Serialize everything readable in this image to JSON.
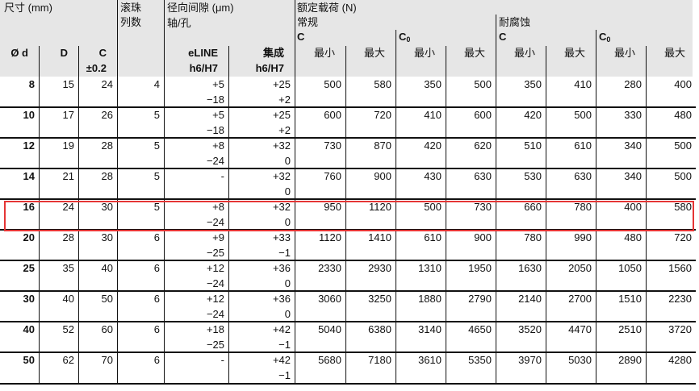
{
  "header": {
    "dimensions": "尺寸 (mm)",
    "ball_rows_1": "滚珠",
    "ball_rows_2": "列数",
    "radial_clearance": "径向间隙 (μm)",
    "shaft_bore": "轴/孔",
    "load_rating": "额定载荷 (N)",
    "standard": "常规",
    "corrosion_resistant": "耐腐蚀",
    "c_dynamic": "C",
    "c_static": "C",
    "c_static_sub": "0",
    "col_d": "Ø d",
    "col_D": "D",
    "col_C": "C",
    "col_C_tol": "±0.2",
    "eline": "eLINE",
    "eline_fit": "h6/H7",
    "integrated": "集成",
    "integrated_fit": "h6/H7",
    "min": "最小",
    "max": "最大"
  },
  "rows": [
    {
      "d": "8",
      "D": "15",
      "C": "24",
      "n": "4",
      "e1": "+5",
      "e2": "−18",
      "i1": "+25",
      "i2": "+2",
      "v": [
        "500",
        "580",
        "350",
        "500",
        "350",
        "410",
        "280",
        "400"
      ]
    },
    {
      "d": "10",
      "D": "17",
      "C": "26",
      "n": "5",
      "e1": "+5",
      "e2": "−18",
      "i1": "+25",
      "i2": "+2",
      "v": [
        "600",
        "720",
        "410",
        "600",
        "420",
        "500",
        "330",
        "480"
      ]
    },
    {
      "d": "12",
      "D": "19",
      "C": "28",
      "n": "5",
      "e1": "+8",
      "e2": "−24",
      "i1": "+32",
      "i2": "0",
      "v": [
        "730",
        "870",
        "420",
        "620",
        "510",
        "610",
        "340",
        "500"
      ]
    },
    {
      "d": "14",
      "D": "21",
      "C": "28",
      "n": "5",
      "e1": "-",
      "e2": "",
      "i1": "+32",
      "i2": "0",
      "v": [
        "760",
        "900",
        "430",
        "630",
        "530",
        "630",
        "340",
        "500"
      ]
    },
    {
      "d": "16",
      "D": "24",
      "C": "30",
      "n": "5",
      "e1": "+8",
      "e2": "−24",
      "i1": "+32",
      "i2": "0",
      "v": [
        "950",
        "1120",
        "500",
        "730",
        "660",
        "780",
        "400",
        "580"
      ],
      "highlighted": true
    },
    {
      "d": "20",
      "D": "28",
      "C": "30",
      "n": "6",
      "e1": "+9",
      "e2": "−25",
      "i1": "+33",
      "i2": "−1",
      "v": [
        "1120",
        "1410",
        "610",
        "900",
        "780",
        "990",
        "480",
        "720"
      ]
    },
    {
      "d": "25",
      "D": "35",
      "C": "40",
      "n": "6",
      "e1": "+12",
      "e2": "−24",
      "i1": "+36",
      "i2": "0",
      "v": [
        "2330",
        "2930",
        "1310",
        "1950",
        "1630",
        "2050",
        "1050",
        "1560"
      ]
    },
    {
      "d": "30",
      "D": "40",
      "C": "50",
      "n": "6",
      "e1": "+12",
      "e2": "−24",
      "i1": "+36",
      "i2": "0",
      "v": [
        "3060",
        "3250",
        "1880",
        "2790",
        "2140",
        "2700",
        "1510",
        "2230"
      ]
    },
    {
      "d": "40",
      "D": "52",
      "C": "60",
      "n": "6",
      "e1": "+18",
      "e2": "−25",
      "i1": "+42",
      "i2": "−1",
      "v": [
        "5040",
        "6380",
        "3140",
        "4650",
        "3520",
        "4470",
        "2510",
        "3720"
      ]
    },
    {
      "d": "50",
      "D": "62",
      "C": "70",
      "n": "6",
      "e1": "-",
      "e2": "",
      "i1": "+42",
      "i2": "−1",
      "v": [
        "5680",
        "7180",
        "3610",
        "5350",
        "3970",
        "5030",
        "2890",
        "4280"
      ]
    }
  ],
  "colors": {
    "header_bg": "#e6e6e6",
    "highlight": "#e53535"
  }
}
